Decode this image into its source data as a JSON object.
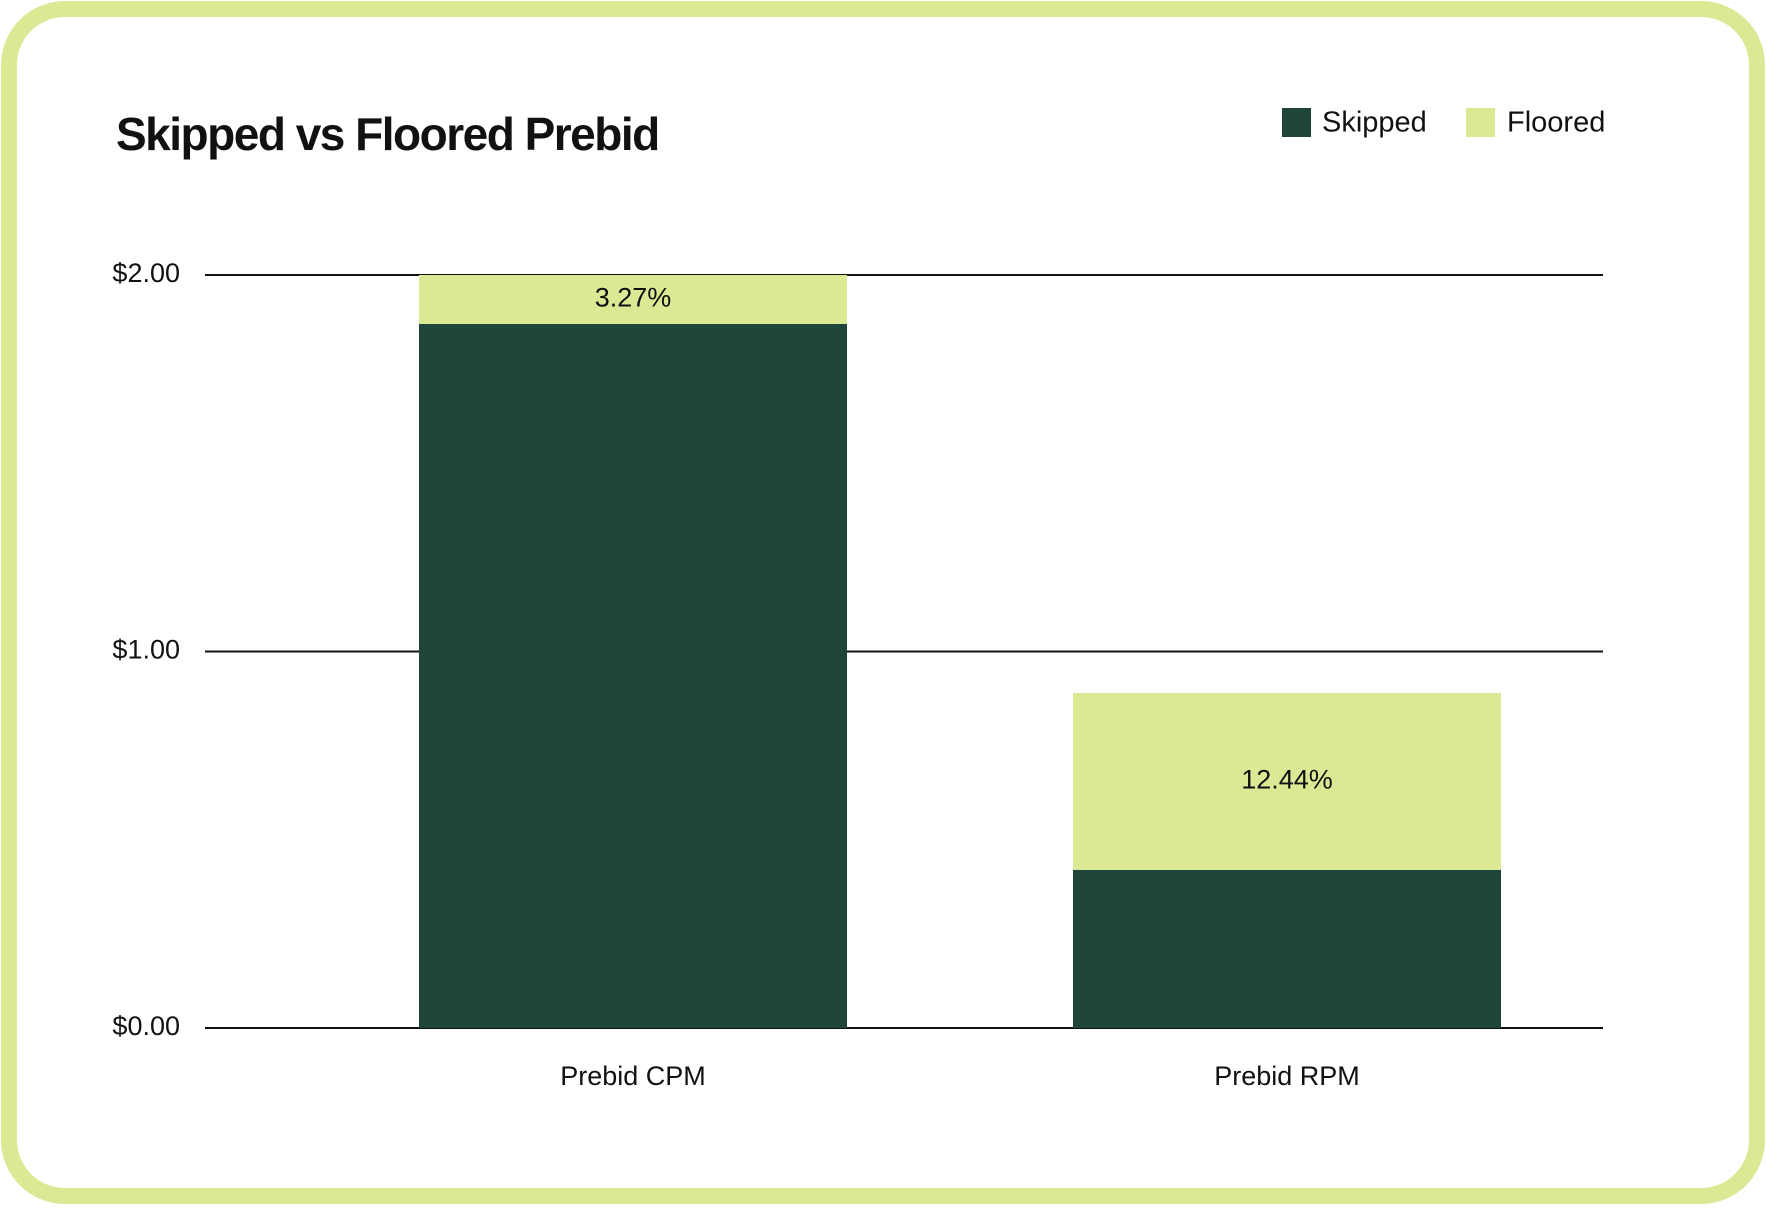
{
  "chart_data": {
    "type": "stacked-bar",
    "title": "Skipped  vs Floored Prebid",
    "categories": [
      "Prebid CPM",
      "Prebid RPM"
    ],
    "series": [
      {
        "name": "Skipped",
        "color": "#1d4539",
        "values": [
          1.87,
          0.42
        ]
      },
      {
        "name": "Floored",
        "color": "#dde895",
        "values": [
          0.13,
          0.47
        ]
      }
    ],
    "annotations": [
      "3.27%",
      "12.44%"
    ],
    "ylim": [
      0,
      2
    ],
    "yticks": [
      {
        "value": 0,
        "label": "$0.00"
      },
      {
        "value": 1,
        "label": "$1.00"
      },
      {
        "value": 2,
        "label": "$2.00"
      }
    ],
    "grid": true,
    "legend": "top-right"
  }
}
